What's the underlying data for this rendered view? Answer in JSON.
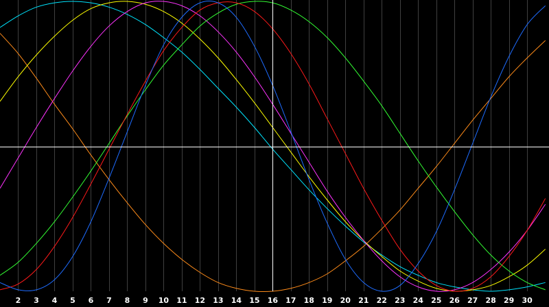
{
  "chart_data": {
    "type": "line",
    "title": "",
    "xlabel": "",
    "ylabel": "",
    "xlim": [
      1.0,
      31.2
    ],
    "ylim": [
      -1,
      1
    ],
    "x_ticks": [
      2,
      3,
      4,
      5,
      6,
      7,
      8,
      9,
      10,
      11,
      12,
      13,
      14,
      15,
      16,
      17,
      18,
      19,
      20,
      21,
      22,
      23,
      24,
      25,
      26,
      27,
      28,
      29,
      30
    ],
    "x_tick_labels": [
      "2",
      "3",
      "4",
      "5",
      "6",
      "7",
      "8",
      "9",
      "10",
      "11",
      "12",
      "13",
      "14",
      "15",
      "16",
      "17",
      "18",
      "19",
      "20",
      "21",
      "22",
      "23",
      "24",
      "25",
      "26",
      "27",
      "28",
      "29",
      "30"
    ],
    "vertical_marker_x": 16,
    "horizontal_marker_y": 0,
    "grid": true,
    "legend": "none",
    "colors": {
      "background": "#000000",
      "grid": "#404040",
      "crosshair": "#ffffff",
      "tick_label": "#ffffff"
    },
    "series": [
      {
        "color": "#ff8c1a",
        "x": [
          1.0,
          2.0,
          3.0,
          4.0,
          5.0,
          6.0,
          7.0,
          8.0,
          9.0,
          10.0,
          11.0,
          12.0,
          13.0,
          14.0,
          15.0,
          16.0,
          17.0,
          18.0,
          19.0,
          20.0,
          21.0,
          22.0,
          23.0,
          24.0,
          25.0,
          26.0,
          27.0,
          28.0,
          29.0,
          30.0,
          31.0
        ],
        "y": [
          0.78,
          0.64,
          0.47,
          0.29,
          0.12,
          -0.06,
          -0.23,
          -0.39,
          -0.54,
          -0.67,
          -0.78,
          -0.87,
          -0.94,
          -0.98,
          -1.0,
          -1.0,
          -0.98,
          -0.94,
          -0.88,
          -0.79,
          -0.69,
          -0.57,
          -0.44,
          -0.29,
          -0.14,
          0.02,
          0.18,
          0.33,
          0.48,
          0.61,
          0.73
        ]
      },
      {
        "color": "#00e5ff",
        "x": [
          1.0,
          2.0,
          3.0,
          4.0,
          5.0,
          6.0,
          7.0,
          8.0,
          9.0,
          10.0,
          11.0,
          12.0,
          13.0,
          14.0,
          15.0,
          16.0,
          17.0,
          18.0,
          19.0,
          20.0,
          21.0,
          22.0,
          23.0,
          24.0,
          25.0,
          26.0,
          27.0,
          28.0,
          29.0,
          30.0,
          31.0
        ],
        "y": [
          0.82,
          0.9,
          0.96,
          0.99,
          1.0,
          0.99,
          0.96,
          0.91,
          0.84,
          0.75,
          0.65,
          0.53,
          0.4,
          0.27,
          0.13,
          -0.02,
          -0.16,
          -0.3,
          -0.43,
          -0.55,
          -0.66,
          -0.75,
          -0.83,
          -0.89,
          -0.94,
          -0.97,
          -0.99,
          -1.0,
          -0.99,
          -0.97,
          -0.94
        ]
      },
      {
        "color": "#ffff00",
        "x": [
          1.0,
          2.0,
          3.0,
          4.0,
          5.0,
          6.0,
          7.0,
          8.0,
          9.0,
          10.0,
          11.0,
          12.0,
          13.0,
          14.0,
          15.0,
          16.0,
          17.0,
          18.0,
          19.0,
          20.0,
          21.0,
          22.0,
          23.0,
          24.0,
          25.0,
          26.0,
          27.0,
          28.0,
          29.0,
          30.0,
          31.0
        ],
        "y": [
          0.31,
          0.48,
          0.63,
          0.76,
          0.87,
          0.95,
          0.99,
          1.0,
          0.98,
          0.93,
          0.85,
          0.74,
          0.61,
          0.46,
          0.3,
          0.13,
          -0.04,
          -0.21,
          -0.37,
          -0.52,
          -0.65,
          -0.76,
          -0.86,
          -0.93,
          -0.98,
          -1.0,
          -0.99,
          -0.96,
          -0.9,
          -0.82,
          -0.71
        ]
      },
      {
        "color": "#ff33ff",
        "x": [
          1.0,
          2.0,
          3.0,
          4.0,
          5.0,
          6.0,
          7.0,
          8.0,
          9.0,
          10.0,
          11.0,
          12.0,
          13.0,
          14.0,
          15.0,
          16.0,
          17.0,
          18.0,
          19.0,
          20.0,
          21.0,
          22.0,
          23.0,
          24.0,
          25.0,
          26.0,
          27.0,
          28.0,
          29.0,
          30.0,
          31.0
        ],
        "y": [
          -0.29,
          -0.08,
          0.13,
          0.33,
          0.52,
          0.69,
          0.83,
          0.93,
          0.99,
          1.0,
          0.97,
          0.9,
          0.79,
          0.65,
          0.48,
          0.29,
          0.09,
          -0.11,
          -0.31,
          -0.49,
          -0.65,
          -0.79,
          -0.9,
          -0.97,
          -1.0,
          -0.99,
          -0.94,
          -0.85,
          -0.73,
          -0.58,
          -0.4
        ]
      },
      {
        "color": "#33ff33",
        "x": [
          1.0,
          2.0,
          3.0,
          4.0,
          5.0,
          6.0,
          7.0,
          8.0,
          9.0,
          10.0,
          11.0,
          12.0,
          13.0,
          14.0,
          15.0,
          16.0,
          17.0,
          18.0,
          19.0,
          20.0,
          21.0,
          22.0,
          23.0,
          24.0,
          25.0,
          26.0,
          27.0,
          28.0,
          29.0,
          30.0,
          31.0
        ],
        "y": [
          -0.89,
          -0.8,
          -0.67,
          -0.52,
          -0.35,
          -0.17,
          0.02,
          0.21,
          0.39,
          0.56,
          0.7,
          0.83,
          0.92,
          0.98,
          1.0,
          0.99,
          0.94,
          0.86,
          0.75,
          0.61,
          0.45,
          0.28,
          0.09,
          -0.1,
          -0.28,
          -0.45,
          -0.61,
          -0.75,
          -0.86,
          -0.94,
          -0.99
        ]
      },
      {
        "color": "#ff1a1a",
        "x": [
          1.0,
          2.0,
          3.0,
          4.0,
          5.0,
          6.0,
          7.0,
          8.0,
          9.0,
          10.0,
          11.0,
          12.0,
          13.0,
          14.0,
          15.0,
          16.0,
          17.0,
          18.0,
          19.0,
          20.0,
          21.0,
          22.0,
          23.0,
          24.0,
          25.0,
          26.0,
          27.0,
          28.0,
          29.0,
          30.0,
          31.0
        ],
        "y": [
          -0.99,
          -0.95,
          -0.85,
          -0.69,
          -0.49,
          -0.26,
          -0.02,
          0.22,
          0.45,
          0.66,
          0.82,
          0.94,
          0.99,
          0.99,
          0.93,
          0.81,
          0.64,
          0.43,
          0.19,
          -0.05,
          -0.29,
          -0.51,
          -0.71,
          -0.86,
          -0.96,
          -1.0,
          -0.98,
          -0.9,
          -0.76,
          -0.58,
          -0.36
        ]
      },
      {
        "color": "#1e6cff",
        "x": [
          1.0,
          2.0,
          3.0,
          4.0,
          5.0,
          6.0,
          7.0,
          8.0,
          9.0,
          10.0,
          11.0,
          12.0,
          13.0,
          14.0,
          15.0,
          16.0,
          17.0,
          18.0,
          19.0,
          20.0,
          21.0,
          22.0,
          23.0,
          24.0,
          25.0,
          26.0,
          27.0,
          28.0,
          29.0,
          30.0,
          31.0
        ],
        "y": [
          -0.94,
          -0.99,
          -0.99,
          -0.92,
          -0.76,
          -0.52,
          -0.22,
          0.1,
          0.42,
          0.7,
          0.89,
          0.99,
          0.99,
          0.89,
          0.69,
          0.42,
          0.1,
          -0.23,
          -0.53,
          -0.78,
          -0.94,
          -1.0,
          -0.96,
          -0.81,
          -0.59,
          -0.3,
          0.02,
          0.34,
          0.62,
          0.84,
          0.97
        ]
      }
    ]
  }
}
